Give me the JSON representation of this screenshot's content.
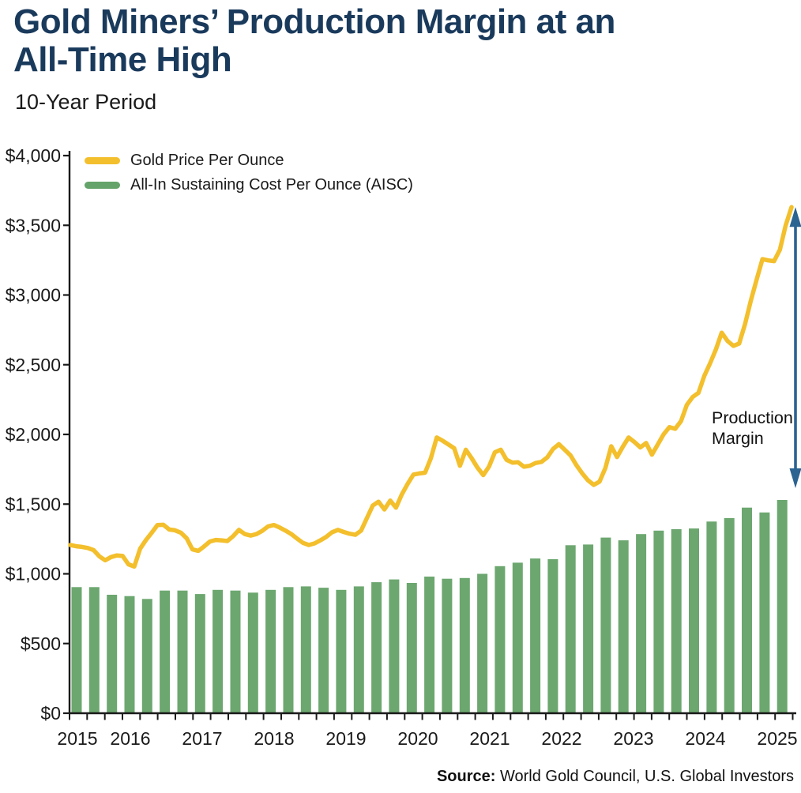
{
  "header": {
    "title_line1": "Gold Miners’ Production Margin at an",
    "title_line2": "All-Time High",
    "subtitle": "10-Year Period"
  },
  "legend": {
    "items": [
      {
        "id": "gold-price",
        "label": "Gold Price Per Ounce",
        "color": "#F3BF2C"
      },
      {
        "id": "aisc",
        "label": "All-In Sustaining Cost Per Ounce (AISC)",
        "color": "#64A369"
      }
    ]
  },
  "annotation": {
    "line1": "Production",
    "line2": "Margin",
    "arrow_color": "#2B6391"
  },
  "source": {
    "prefix": "Source:",
    "text": " World Gold Council, U.S. Global Investors"
  },
  "colors": {
    "title_navy": "#1A3A5C",
    "gold_line": "#F3BF2C",
    "aisc_bar": "#6CA76F",
    "axis_black": "#1a1a1a",
    "arrow_blue": "#2B6391"
  },
  "chart_data": {
    "type": "bar+line",
    "title": "Gold Miners’ Production Margin at an All-Time High",
    "subtitle": "10-Year Period",
    "y_axis": {
      "min": 0,
      "max": 4000,
      "tick_values": [
        0,
        500,
        1000,
        1500,
        2000,
        2500,
        3000,
        3500,
        4000
      ],
      "tick_labels": [
        "$0",
        "$500",
        "$1,000",
        "$1,500",
        "$2,000",
        "$2,500",
        "$3,000",
        "$3,500",
        "$4,000"
      ]
    },
    "x_axis": {
      "year_labels": [
        "2015",
        "2016",
        "2017",
        "2018",
        "2019",
        "2020",
        "2021",
        "2022",
        "2023",
        "2024",
        "2025"
      ],
      "quarter_tick_count": 42
    },
    "series": [
      {
        "name": "Gold Price Per Ounce",
        "type": "line",
        "color": "#F3BF2C",
        "frequency": "monthly",
        "start": "2015-01",
        "values": [
          1207,
          1198,
          1193,
          1185,
          1170,
          1125,
          1097,
          1120,
          1132,
          1128,
          1068,
          1052,
          1180,
          1242,
          1295,
          1350,
          1352,
          1318,
          1312,
          1295,
          1255,
          1175,
          1165,
          1196,
          1232,
          1243,
          1240,
          1235,
          1270,
          1315,
          1285,
          1274,
          1285,
          1308,
          1340,
          1350,
          1332,
          1310,
          1285,
          1252,
          1222,
          1207,
          1218,
          1240,
          1265,
          1298,
          1315,
          1300,
          1288,
          1280,
          1310,
          1400,
          1490,
          1517,
          1462,
          1525,
          1475,
          1570,
          1645,
          1712,
          1720,
          1725,
          1830,
          1978,
          1955,
          1928,
          1900,
          1775,
          1890,
          1830,
          1762,
          1708,
          1770,
          1872,
          1890,
          1818,
          1798,
          1800,
          1768,
          1775,
          1795,
          1803,
          1835,
          1895,
          1930,
          1890,
          1850,
          1780,
          1722,
          1671,
          1638,
          1662,
          1760,
          1915,
          1838,
          1912,
          1978,
          1945,
          1907,
          1938,
          1855,
          1928,
          2000,
          2052,
          2040,
          2095,
          2212,
          2268,
          2298,
          2420,
          2510,
          2610,
          2730,
          2670,
          2635,
          2652,
          2790,
          2960,
          3110,
          3257,
          3248,
          3243,
          3325,
          3500,
          3630
        ]
      },
      {
        "name": "All-In Sustaining Cost Per Ounce (AISC)",
        "type": "bar",
        "color": "#6CA76F",
        "frequency": "quarterly",
        "start": "2015-Q1",
        "values": [
          905,
          905,
          850,
          840,
          820,
          880,
          880,
          855,
          885,
          880,
          865,
          885,
          905,
          910,
          900,
          885,
          910,
          940,
          960,
          935,
          980,
          965,
          970,
          1000,
          1055,
          1080,
          1110,
          1105,
          1205,
          1210,
          1260,
          1240,
          1285,
          1310,
          1320,
          1325,
          1375,
          1400,
          1475,
          1440,
          1530
        ]
      }
    ],
    "annotation": {
      "label": "Production Margin",
      "from_value": 1615,
      "to_value": 3630
    }
  }
}
